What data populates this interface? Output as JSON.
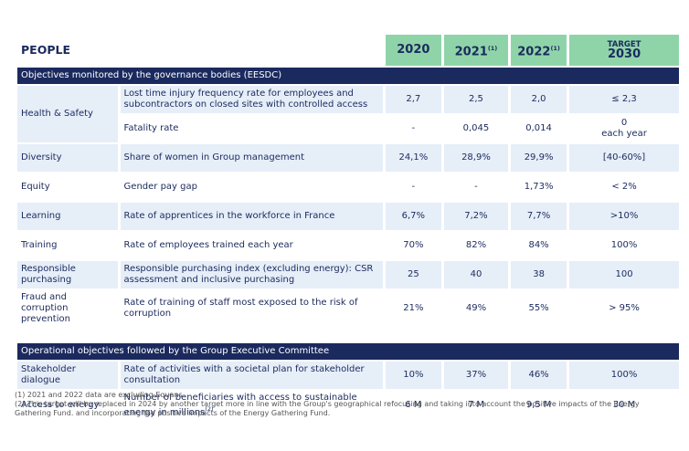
{
  "header": {
    "title": "PEOPLE",
    "columns": [
      {
        "year": "2020"
      },
      {
        "year": "2021",
        "note": "(1)"
      },
      {
        "year": "2022",
        "note": "(1)"
      },
      {
        "label": "TARGET",
        "year": "2030"
      }
    ]
  },
  "sections": [
    {
      "title": "Objectives monitored by the governance bodies (EESDC)",
      "groups": [
        {
          "label": "Health & Safety",
          "items": [
            {
              "description": "Lost time injury frequency rate for employees and subcontractors on closed sites with controlled access",
              "values": [
                "2,7",
                "2,5",
                "2,0"
              ],
              "target": "≤ 2,3"
            },
            {
              "description": "Fatality rate",
              "values": [
                "-",
                "0,045",
                "0,014"
              ],
              "target": [
                "0",
                "each year"
              ]
            }
          ]
        },
        {
          "label": "Diversity",
          "items": [
            {
              "description": "Share of women in Group management",
              "values": [
                "24,1%",
                "28,9%",
                "29,9%"
              ],
              "target": "[40-60%]"
            }
          ]
        },
        {
          "label": "Equity",
          "items": [
            {
              "description": "Gender pay gap",
              "values": [
                "-",
                "-",
                "1,73%"
              ],
              "target": "< 2%"
            }
          ]
        },
        {
          "label": "Learning",
          "items": [
            {
              "description": "Rate of apprentices in the workforce in France",
              "values": [
                "6,7%",
                "7,2%",
                "7,7%"
              ],
              "target": ">10%"
            }
          ]
        },
        {
          "label": "Training",
          "items": [
            {
              "description": "Rate of employees trained each year",
              "values": [
                "70%",
                "82%",
                "84%"
              ],
              "target": "100%"
            }
          ]
        },
        {
          "label": "Responsible purchasing",
          "items": [
            {
              "description": "Responsible purchasing index (excluding energy): CSR assessment and inclusive purchasing",
              "values": [
                "25",
                "40",
                "38"
              ],
              "target": "100"
            }
          ]
        },
        {
          "label": "Fraud and corruption prevention",
          "items": [
            {
              "description": "Rate of training of staff most exposed to the risk of corruption",
              "values": [
                "21%",
                "49%",
                "55%"
              ],
              "target": "> 95%"
            }
          ]
        }
      ]
    },
    {
      "title": "Operational objectives followed by the Group Executive Committee",
      "groups": [
        {
          "label": "Stakeholder dialogue",
          "items": [
            {
              "description": "Rate of activities with a societal plan for stakeholder consultation",
              "values": [
                "10%",
                "37%",
                "46%"
              ],
              "target": "100%"
            }
          ]
        },
        {
          "label": "Access to energy",
          "items": [
            {
              "description": "Number of beneficiaries with access to sustainable energy in millions",
              "note": "(2)",
              "values": [
                "6 M",
                "7 M",
                "9,5 M"
              ],
              "target": "30 M"
            }
          ]
        }
      ]
    }
  ],
  "footnotes": [
    "(1) 2021 and 2022 data are excluding Equans.",
    "(2) This target will be replaced in 2024 by another target more in line with the Group's geographical refocusing and taking into account the positive impacts of the Energy Gathering Fund. and incorporating the positive impacts of the Energy Gathering Fund."
  ]
}
